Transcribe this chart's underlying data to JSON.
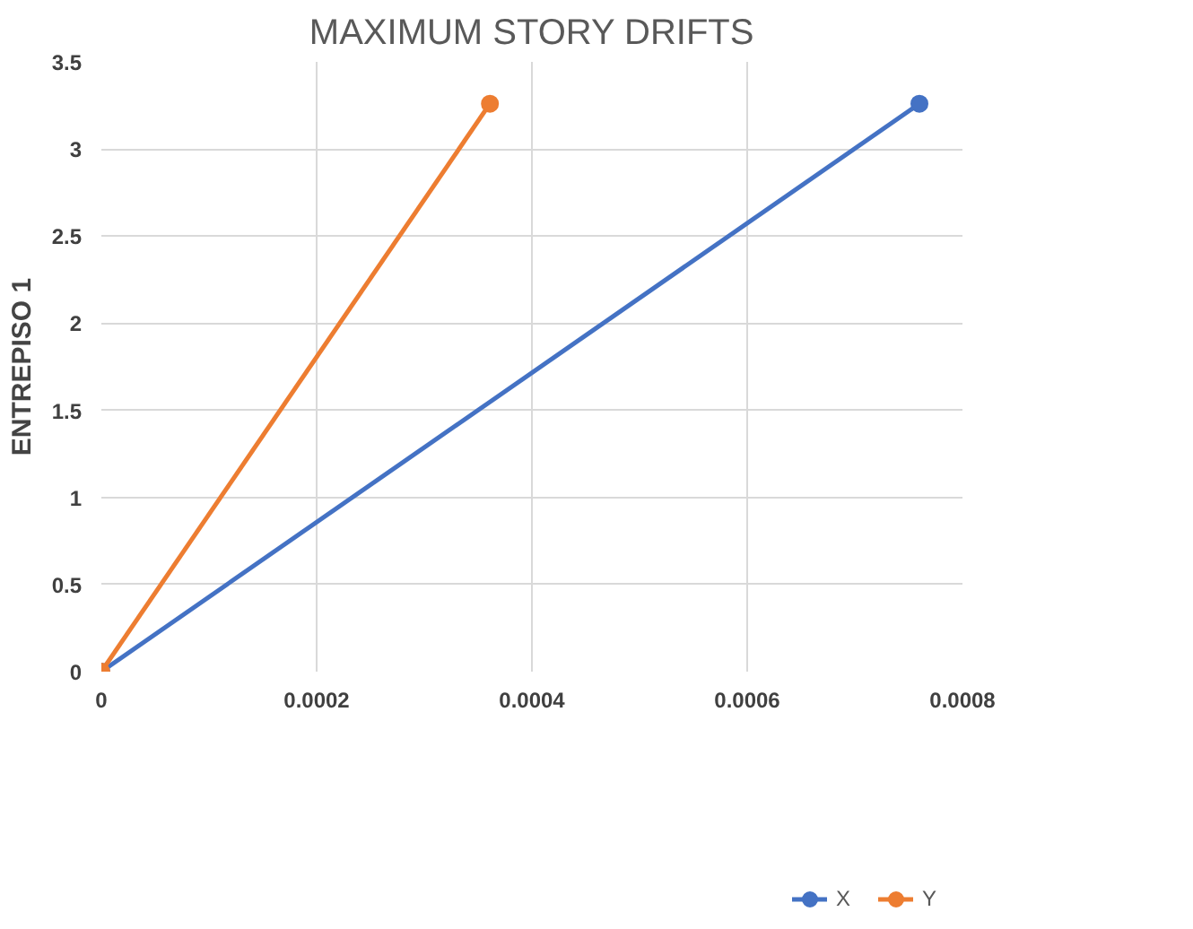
{
  "chart_data": {
    "type": "line",
    "title": "MAXIMUM STORY DRIFTS",
    "ylabel": "ENTREPISO 1",
    "series": [
      {
        "name": "X",
        "color": "#4472c4",
        "x": [
          0,
          0.00076
        ],
        "values": [
          0,
          3.26
        ]
      },
      {
        "name": "Y",
        "color": "#ed7d31",
        "x": [
          0,
          0.000361
        ],
        "values": [
          0,
          3.26
        ]
      }
    ],
    "xlim": [
      0,
      0.0008
    ],
    "xticks": [
      0,
      0.0002,
      0.0004,
      0.0006,
      0.0008
    ],
    "ylim": [
      0,
      3.5
    ],
    "yticks": [
      0,
      0.5,
      1,
      1.5,
      2,
      2.5,
      3,
      3.5
    ],
    "grid": true,
    "legend": "bottom",
    "marker": "circle",
    "line_style": "solid"
  }
}
